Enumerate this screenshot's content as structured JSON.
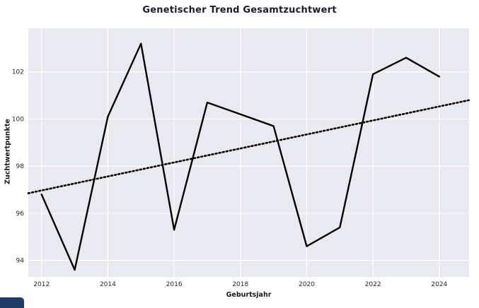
{
  "chart_data": {
    "type": "line",
    "title": "Genetischer Trend Gesamtzuchtwert",
    "xlabel": "Geburtsjahr",
    "ylabel": "Zuchtwertpunkte",
    "x": [
      2012,
      2013,
      2014,
      2015,
      2016,
      2017,
      2018,
      2019,
      2020,
      2021,
      2022,
      2023,
      2024
    ],
    "series": [
      {
        "name": "gesamtzuchtwert",
        "style": "solid",
        "color": "#000000",
        "width": 2.4,
        "values": [
          96.8,
          93.6,
          100.1,
          103.2,
          95.3,
          100.7,
          100.2,
          99.7,
          94.6,
          95.4,
          101.9,
          102.6,
          101.8
        ]
      },
      {
        "name": "trend",
        "style": "dotted",
        "color": "#000000",
        "width": 2.6,
        "x": [
          2011.6,
          2024.9
        ],
        "values": [
          96.85,
          100.8
        ]
      }
    ],
    "xlim": [
      2011.6,
      2024.9
    ],
    "ylim": [
      93.3,
      103.85
    ],
    "xticks": [
      2012,
      2014,
      2016,
      2018,
      2020,
      2022,
      2024
    ],
    "yticks": [
      94,
      96,
      98,
      100,
      102
    ],
    "grid": true,
    "legend": "none",
    "colors": {
      "plot_bg": "#e9e9f1",
      "grid": "#ffffff",
      "tick": "#262626",
      "title": "#1c1c30",
      "axis_label": "#1a1a1a",
      "line": "#000000"
    }
  },
  "corner_badge": {
    "color": "#1d3b63"
  }
}
